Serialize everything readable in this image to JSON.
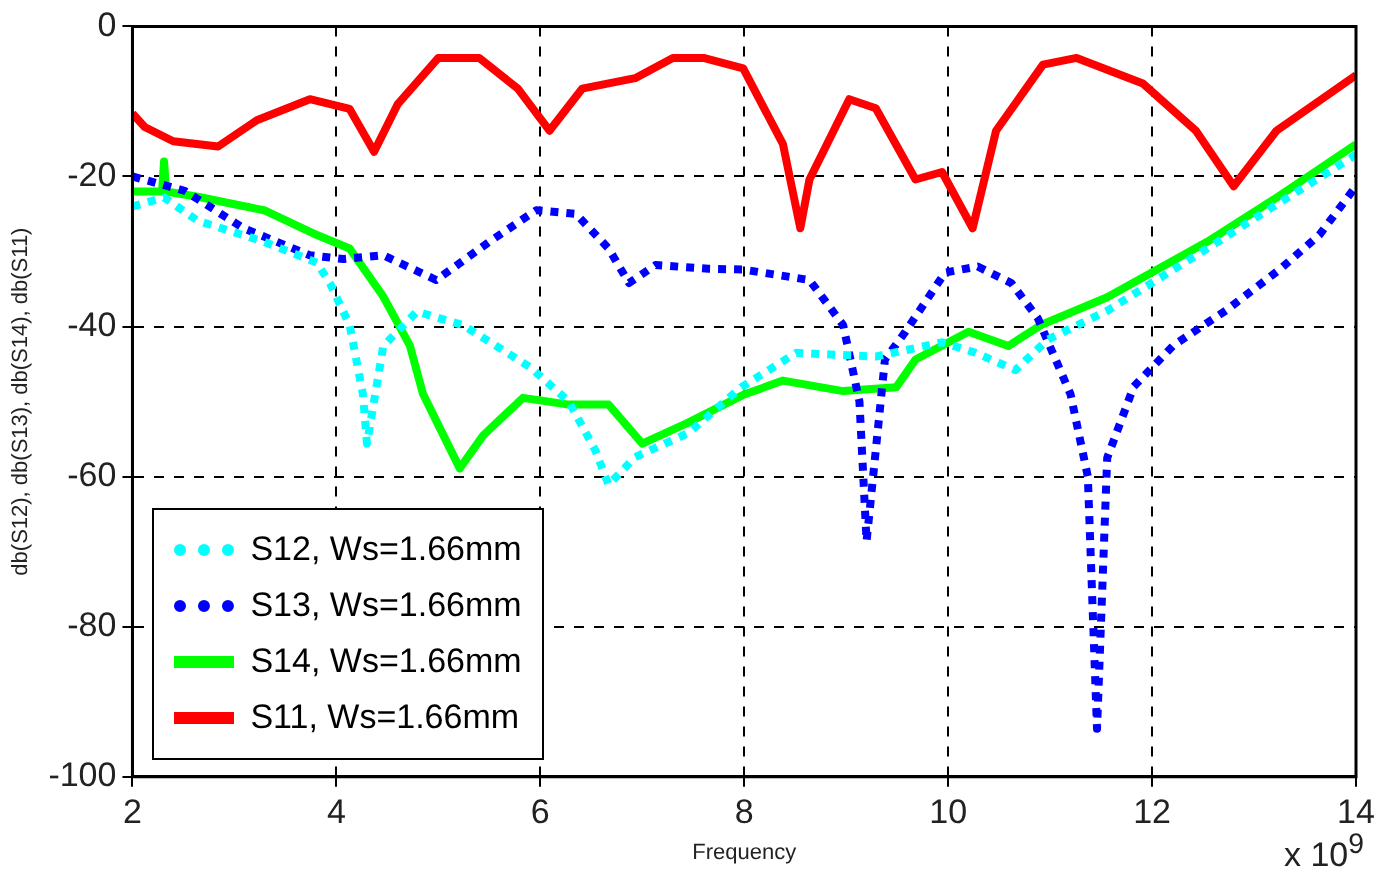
{
  "chart_data": {
    "type": "line",
    "xlabel": "Frequency",
    "ylabel": "db(S12), db(S13), db(S14), db(S11)",
    "annotations": [
      "x 10$^{9}$"
    ],
    "xlim": [
      2,
      14
    ],
    "xticks": [
      2,
      4,
      6,
      8,
      10,
      12,
      14
    ],
    "ylim": [
      -100,
      0
    ],
    "yticks": [
      -100,
      -80,
      -60,
      -40,
      -20,
      0
    ],
    "grid": true,
    "legend": "bottom left",
    "marker": "none",
    "series": [
      {
        "name": "S12, Ws=1.66mm",
        "color": "#00ffff",
        "line_style": "dotted",
        "x": [
          2,
          2.31,
          2.64,
          3.29,
          3.81,
          3.94,
          4.13,
          4.26,
          4.3,
          4.46,
          4.79,
          5.24,
          5.9,
          6.28,
          6.54,
          6.67,
          6.93,
          7.45,
          7.97,
          8.51,
          9.29,
          9.94,
          10.27,
          10.66,
          10.98,
          11.56,
          12.54,
          13.19,
          14
        ],
        "values": [
          -24,
          -22.8,
          -25.9,
          -28.7,
          -31.5,
          -34.3,
          -39.8,
          -49,
          -55.6,
          -42.6,
          -38,
          -39.8,
          -45.4,
          -50,
          -56.5,
          -61.1,
          -57.4,
          -54.2,
          -48.1,
          -43.5,
          -44,
          -42.1,
          -43.5,
          -45.8,
          -41.7,
          -37.9,
          -29.6,
          -24,
          -17.1
        ]
      },
      {
        "name": "S13, Ws=1.66mm",
        "color": "#0000ff",
        "line_style": "dotted",
        "x": [
          2,
          2.51,
          3.09,
          3.74,
          4.07,
          4.46,
          4.98,
          5.5,
          5.96,
          6.35,
          6.67,
          6.87,
          7.13,
          7.65,
          7.99,
          8.64,
          8.97,
          9.13,
          9.2,
          9.38,
          9.58,
          9.97,
          10.29,
          10.62,
          10.88,
          11.2,
          11.37,
          11.46,
          11.56,
          11.82,
          12.21,
          12.73,
          13.25,
          13.64,
          14
        ],
        "values": [
          -20,
          -21.9,
          -26.9,
          -30.5,
          -31,
          -30.5,
          -33.8,
          -28.7,
          -24.5,
          -25,
          -29.6,
          -34.2,
          -31.8,
          -32.3,
          -32.4,
          -33.8,
          -39.8,
          -50,
          -68.6,
          -44.4,
          -40.7,
          -32.8,
          -32,
          -34.2,
          -38.9,
          -49,
          -60,
          -93.6,
          -57.5,
          -48,
          -42.5,
          -37.8,
          -32.4,
          -27.8,
          -21.3
        ]
      },
      {
        "name": "S14, Ws=1.66mm",
        "color": "#00ff00",
        "line_style": "solid",
        "x": [
          2,
          2.29,
          2.31,
          2.33,
          2.64,
          3.29,
          3.81,
          4.13,
          4.46,
          4.72,
          4.85,
          5.05,
          5.21,
          5.44,
          5.83,
          6.28,
          6.67,
          7,
          7.45,
          7.99,
          8.38,
          8.97,
          9.49,
          9.68,
          10.2,
          10.59,
          10.91,
          11.56,
          12.54,
          13.19,
          14
        ],
        "values": [
          -22,
          -22,
          -18,
          -22,
          -22.7,
          -24.5,
          -27.8,
          -29.6,
          -36,
          -42.5,
          -49,
          -54.5,
          -58.9,
          -54.5,
          -49.5,
          -50.4,
          -50.4,
          -55.6,
          -52.8,
          -49.1,
          -47.2,
          -48.6,
          -48.1,
          -44.4,
          -40.7,
          -42.6,
          -39.8,
          -36.1,
          -28.7,
          -23.1,
          -15.7
        ]
      },
      {
        "name": "S11, Ws=1.66mm",
        "color": "#ff0000",
        "line_style": "solid",
        "x": [
          2,
          2.12,
          2.4,
          2.84,
          3.22,
          3.74,
          4.13,
          4.37,
          4.6,
          5,
          5.4,
          5.78,
          6.09,
          6.41,
          6.93,
          7.3,
          7.6,
          7.99,
          8.38,
          8.55,
          8.64,
          9.03,
          9.29,
          9.68,
          9.94,
          10.24,
          10.47,
          10.93,
          11.26,
          11.91,
          12.43,
          12.8,
          13.22,
          14
        ],
        "values": [
          -11.6,
          -13.4,
          -15.3,
          -16,
          -12.5,
          -9.7,
          -11,
          -16.7,
          -10.4,
          -4.2,
          -4.2,
          -8.3,
          -13.9,
          -8.3,
          -6.9,
          -4.2,
          -4.2,
          -5.6,
          -15.7,
          -26.9,
          -20.4,
          -9.7,
          -10.9,
          -20.4,
          -19.4,
          -26.9,
          -13.9,
          -5.1,
          -4.2,
          -7.6,
          -13.9,
          -21.3,
          -13.9,
          -6.5
        ]
      }
    ]
  }
}
